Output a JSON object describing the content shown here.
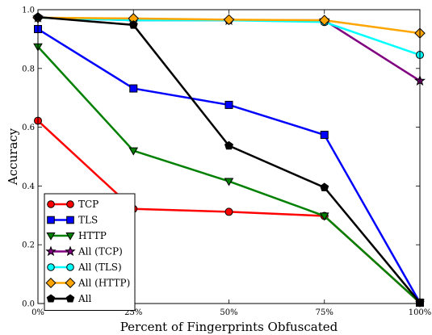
{
  "chart_data": {
    "type": "line",
    "title": "",
    "xlabel": "Percent of Fingerprints Obfuscated",
    "ylabel": "Accuracy",
    "categories": [
      "0%",
      "25%",
      "50%",
      "75%",
      "100%"
    ],
    "ylim": [
      0.0,
      1.0
    ],
    "yticks": [
      "0.0",
      "0.2",
      "0.4",
      "0.6",
      "0.8",
      "1.0"
    ],
    "legend_position": "bottom-left",
    "grid": false,
    "series": [
      {
        "name": "TCP",
        "color": "#ff0000",
        "marker": "circle",
        "values": [
          0.622,
          0.322,
          0.312,
          0.298,
          0.003
        ]
      },
      {
        "name": "TLS",
        "color": "#0000ff",
        "marker": "square",
        "values": [
          0.934,
          0.732,
          0.676,
          0.574,
          0.003
        ]
      },
      {
        "name": "HTTP",
        "color": "#008000",
        "marker": "triangle-down",
        "values": [
          0.874,
          0.52,
          0.416,
          0.298,
          0.003
        ]
      },
      {
        "name": "All (TCP)",
        "color": "#800080",
        "marker": "star",
        "values": [
          0.973,
          0.964,
          0.964,
          0.964,
          0.758
        ]
      },
      {
        "name": "All (TLS)",
        "color": "#00ffff",
        "marker": "circle",
        "values": [
          0.973,
          0.964,
          0.964,
          0.958,
          0.846
        ]
      },
      {
        "name": "All (HTTP)",
        "color": "#ffa500",
        "marker": "diamond",
        "values": [
          0.973,
          0.97,
          0.966,
          0.964,
          0.92
        ]
      },
      {
        "name": "All",
        "color": "#000000",
        "marker": "pentagon",
        "values": [
          0.975,
          0.948,
          0.537,
          0.395,
          0.003
        ]
      }
    ]
  }
}
